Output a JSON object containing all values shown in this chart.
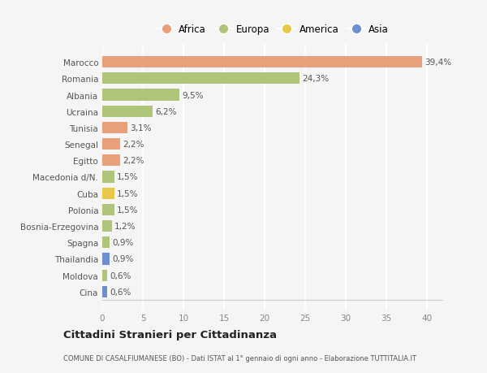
{
  "categories": [
    "Cina",
    "Moldova",
    "Thailandia",
    "Spagna",
    "Bosnia-Erzegovina",
    "Polonia",
    "Cuba",
    "Macedonia d/N.",
    "Egitto",
    "Senegal",
    "Tunisia",
    "Ucraina",
    "Albania",
    "Romania",
    "Marocco"
  ],
  "values": [
    0.6,
    0.6,
    0.9,
    0.9,
    1.2,
    1.5,
    1.5,
    1.5,
    2.2,
    2.2,
    3.1,
    6.2,
    9.5,
    24.3,
    39.4
  ],
  "labels": [
    "0,6%",
    "0,6%",
    "0,9%",
    "0,9%",
    "1,2%",
    "1,5%",
    "1,5%",
    "1,5%",
    "2,2%",
    "2,2%",
    "3,1%",
    "6,2%",
    "9,5%",
    "24,3%",
    "39,4%"
  ],
  "colors": [
    "#6b8fcf",
    "#adc47a",
    "#6b8fcf",
    "#adc47a",
    "#adc47a",
    "#adc47a",
    "#e8c84a",
    "#adc47a",
    "#e8a07a",
    "#e8a07a",
    "#e8a07a",
    "#adc47a",
    "#adc47a",
    "#adc47a",
    "#e8a07a"
  ],
  "legend_labels": [
    "Africa",
    "Europa",
    "America",
    "Asia"
  ],
  "legend_colors": [
    "#e8a07a",
    "#adc47a",
    "#e8c84a",
    "#6b8fcf"
  ],
  "title": "Cittadini Stranieri per Cittadinanza",
  "subtitle": "COMUNE DI CASALFIUMANESE (BO) - Dati ISTAT al 1° gennaio di ogni anno - Elaborazione TUTTITALIA.IT",
  "xlim": [
    0,
    42
  ],
  "xticks": [
    0,
    5,
    10,
    15,
    20,
    25,
    30,
    35,
    40
  ],
  "background_color": "#f5f5f5",
  "grid_color": "#ffffff",
  "bar_height": 0.7
}
